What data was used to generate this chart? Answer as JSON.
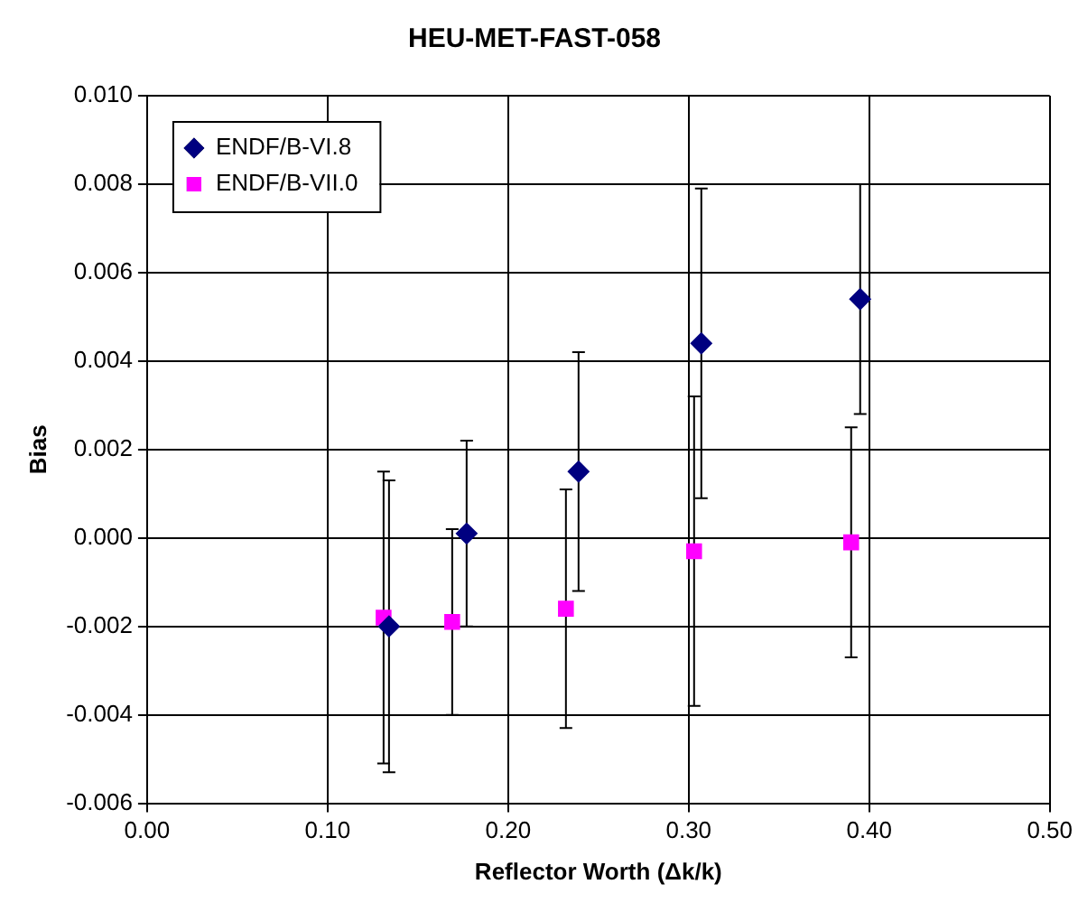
{
  "chart_data": {
    "type": "scatter",
    "title": "HEU-MET-FAST-058",
    "xlabel": "Reflector Worth (Δk/k)",
    "ylabel": "Bias",
    "xlim": [
      0,
      0.5
    ],
    "xticks": [
      {
        "value": 0,
        "label": "0.00"
      },
      {
        "value": 0.1,
        "label": "0.10"
      },
      {
        "value": 0.2,
        "label": "0.20"
      },
      {
        "value": 0.3,
        "label": "0.30"
      },
      {
        "value": 0.4,
        "label": "0.40"
      },
      {
        "value": 0.5,
        "label": "0.50"
      }
    ],
    "ylim": [
      -0.006,
      0.01
    ],
    "yticks": [
      {
        "value": -0.006,
        "label": "-0.006"
      },
      {
        "value": -0.004,
        "label": "-0.004"
      },
      {
        "value": -0.002,
        "label": "-0.002"
      },
      {
        "value": 0,
        "label": "0.000"
      },
      {
        "value": 0.002,
        "label": "0.002"
      },
      {
        "value": 0.004,
        "label": "0.004"
      },
      {
        "value": 0.006,
        "label": "0.006"
      },
      {
        "value": 0.008,
        "label": "0.008"
      },
      {
        "value": 0.01,
        "label": "0.010"
      }
    ],
    "grid": true,
    "legend": "top left",
    "series": [
      {
        "name": "ENDF/B-VI.8",
        "color": "#000080",
        "marker": "diamond",
        "x": [
          0.134,
          0.177,
          0.239,
          0.307,
          0.395
        ],
        "values": [
          -0.002,
          0.0001,
          0.0015,
          0.0044,
          0.0054
        ],
        "errors": [
          0.0033,
          0.0021,
          0.0027,
          0.0035,
          0.0026
        ]
      },
      {
        "name": "ENDF/B-VII.0",
        "color": "#ff00ff",
        "marker": "square",
        "x": [
          0.131,
          0.169,
          0.232,
          0.303,
          0.39
        ],
        "values": [
          -0.0018,
          -0.0019,
          -0.0016,
          -0.0003,
          -0.0001
        ],
        "errors": [
          0.0033,
          0.0021,
          0.0027,
          0.0035,
          0.0026
        ]
      }
    ]
  }
}
